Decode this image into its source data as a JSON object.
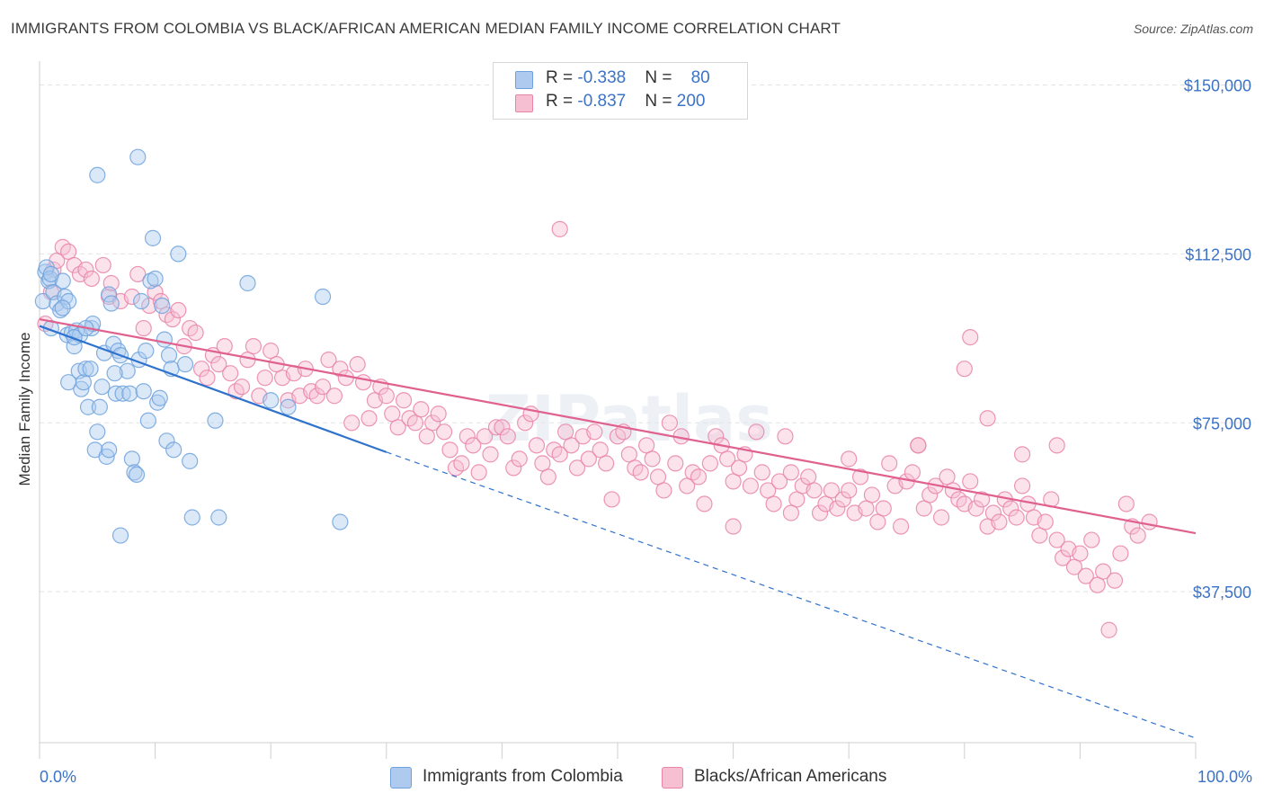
{
  "title": "IMMIGRANTS FROM COLOMBIA VS BLACK/AFRICAN AMERICAN MEDIAN FAMILY INCOME CORRELATION CHART",
  "source": "Source: ZipAtlas.com",
  "watermark": "ZIPatlas",
  "colors": {
    "blue": "#6fa2dd",
    "blue_fill": "#aecbef",
    "blue_line": "#2f72cc",
    "pink": "#e984a8",
    "pink_fill": "#f6bfd2",
    "pink_line": "#e0608e",
    "tick_text": "#3b73c7",
    "grid": "#e3e3e3"
  },
  "legend": {
    "rows": [
      {
        "r_label": "R = ",
        "r_value": "-0.338",
        "n_label": "N = ",
        "n_value": "80"
      },
      {
        "r_label": "R = ",
        "r_value": "-0.837",
        "n_label": "N = ",
        "n_value": "200"
      }
    ]
  },
  "bottom_legend": [
    "Immigrants from Colombia",
    "Blacks/African Americans"
  ],
  "chart_data": {
    "type": "scatter",
    "ylabel": "Median Family Income",
    "xlabel": "",
    "x_tick_labels": [
      "0.0%",
      "100.0%"
    ],
    "y_tick_labels": [
      "$150,000",
      "$112,500",
      "$75,000",
      "$37,500"
    ],
    "y_ticks": [
      150000,
      112500,
      75000,
      37500
    ],
    "xlim": [
      0,
      100
    ],
    "ylim": [
      4000,
      153500
    ],
    "grid": true,
    "legend_position": "top-center",
    "series": [
      {
        "name": "Immigrants from Colombia",
        "color": "blue",
        "trend": {
          "x0": 0,
          "y0": 96500,
          "x1": 30,
          "y1": 68500,
          "dashed_to_x": 100,
          "dashed_to_y": 5000
        },
        "points": [
          [
            0.3,
            102000
          ],
          [
            0.5,
            108500
          ],
          [
            0.8,
            106500
          ],
          [
            0.6,
            109500
          ],
          [
            0.9,
            107000
          ],
          [
            1.2,
            104000
          ],
          [
            1.0,
            96000
          ],
          [
            1.5,
            101500
          ],
          [
            1.8,
            100000
          ],
          [
            2.0,
            106500
          ],
          [
            2.2,
            103000
          ],
          [
            2.5,
            102000
          ],
          [
            2.4,
            94500
          ],
          [
            2.8,
            95000
          ],
          [
            3.0,
            92000
          ],
          [
            3.2,
            95500
          ],
          [
            3.5,
            94500
          ],
          [
            3.4,
            86500
          ],
          [
            3.6,
            82500
          ],
          [
            3.8,
            84000
          ],
          [
            4.0,
            87000
          ],
          [
            4.2,
            78500
          ],
          [
            4.4,
            87000
          ],
          [
            4.5,
            96000
          ],
          [
            4.6,
            97000
          ],
          [
            4.8,
            69000
          ],
          [
            5.0,
            73000
          ],
          [
            5.2,
            78500
          ],
          [
            5.4,
            83000
          ],
          [
            5.6,
            90500
          ],
          [
            5.8,
            67500
          ],
          [
            6.0,
            69000
          ],
          [
            6.0,
            103500
          ],
          [
            6.2,
            101500
          ],
          [
            6.4,
            92500
          ],
          [
            6.6,
            81500
          ],
          [
            6.8,
            91000
          ],
          [
            7.0,
            90000
          ],
          [
            7.2,
            81500
          ],
          [
            7.6,
            86500
          ],
          [
            7.0,
            50000
          ],
          [
            7.8,
            81500
          ],
          [
            8.0,
            67000
          ],
          [
            8.2,
            64000
          ],
          [
            8.4,
            63500
          ],
          [
            8.6,
            89000
          ],
          [
            8.8,
            102000
          ],
          [
            9.0,
            82000
          ],
          [
            9.2,
            91000
          ],
          [
            9.4,
            75500
          ],
          [
            9.6,
            106500
          ],
          [
            9.8,
            116000
          ],
          [
            10.0,
            107000
          ],
          [
            10.2,
            79500
          ],
          [
            10.4,
            80500
          ],
          [
            10.6,
            101000
          ],
          [
            10.8,
            93500
          ],
          [
            11.0,
            71000
          ],
          [
            11.2,
            90000
          ],
          [
            11.4,
            87000
          ],
          [
            11.6,
            69000
          ],
          [
            12.0,
            112500
          ],
          [
            12.6,
            88000
          ],
          [
            13.0,
            66500
          ],
          [
            13.2,
            54000
          ],
          [
            15.5,
            54000
          ],
          [
            15.2,
            75500
          ],
          [
            18.0,
            106000
          ],
          [
            20.0,
            80000
          ],
          [
            21.5,
            78500
          ],
          [
            24.5,
            103000
          ],
          [
            26.0,
            53000
          ],
          [
            5.0,
            130000
          ],
          [
            8.5,
            134000
          ],
          [
            1.0,
            108000
          ],
          [
            2.0,
            100500
          ],
          [
            3.0,
            94000
          ],
          [
            4.0,
            96000
          ],
          [
            2.5,
            84000
          ],
          [
            6.5,
            86000
          ]
        ]
      },
      {
        "name": "Blacks/African Americans",
        "color": "pink",
        "trend": {
          "x0": 0,
          "y0": 98000,
          "x1": 100,
          "y1": 50500
        },
        "points": [
          [
            0.5,
            97000
          ],
          [
            1.0,
            104000
          ],
          [
            1.2,
            109000
          ],
          [
            1.5,
            111000
          ],
          [
            2.0,
            114000
          ],
          [
            2.5,
            113000
          ],
          [
            3.0,
            110000
          ],
          [
            3.5,
            108000
          ],
          [
            4.0,
            109000
          ],
          [
            4.5,
            107000
          ],
          [
            5.5,
            110000
          ],
          [
            6.0,
            103000
          ],
          [
            6.2,
            106000
          ],
          [
            7.0,
            102000
          ],
          [
            8.0,
            103000
          ],
          [
            8.5,
            108000
          ],
          [
            9.0,
            96000
          ],
          [
            9.5,
            101000
          ],
          [
            10.0,
            104000
          ],
          [
            10.5,
            102000
          ],
          [
            11.0,
            99000
          ],
          [
            11.5,
            98000
          ],
          [
            12.0,
            100000
          ],
          [
            12.5,
            92000
          ],
          [
            13.0,
            96000
          ],
          [
            13.5,
            95000
          ],
          [
            14.0,
            87000
          ],
          [
            14.5,
            85000
          ],
          [
            15.0,
            90000
          ],
          [
            15.5,
            88000
          ],
          [
            16.0,
            92000
          ],
          [
            16.5,
            86000
          ],
          [
            17.0,
            82000
          ],
          [
            17.5,
            83000
          ],
          [
            18.0,
            89000
          ],
          [
            18.5,
            92000
          ],
          [
            19.0,
            81000
          ],
          [
            19.5,
            85000
          ],
          [
            20.0,
            91000
          ],
          [
            20.5,
            88000
          ],
          [
            21.0,
            85000
          ],
          [
            21.5,
            80000
          ],
          [
            22.0,
            86000
          ],
          [
            22.5,
            81000
          ],
          [
            23.0,
            87000
          ],
          [
            23.5,
            82000
          ],
          [
            24.0,
            81000
          ],
          [
            24.5,
            83000
          ],
          [
            25.0,
            89000
          ],
          [
            25.5,
            81000
          ],
          [
            26.0,
            87000
          ],
          [
            26.5,
            85000
          ],
          [
            27.0,
            75000
          ],
          [
            27.5,
            88000
          ],
          [
            28.0,
            84000
          ],
          [
            28.5,
            76000
          ],
          [
            29.0,
            80000
          ],
          [
            29.5,
            83000
          ],
          [
            30.0,
            81000
          ],
          [
            30.5,
            77000
          ],
          [
            31.0,
            74000
          ],
          [
            31.5,
            80000
          ],
          [
            32.0,
            76000
          ],
          [
            32.5,
            75000
          ],
          [
            33.0,
            78000
          ],
          [
            33.5,
            72000
          ],
          [
            34.0,
            75000
          ],
          [
            34.5,
            77000
          ],
          [
            35.0,
            73000
          ],
          [
            35.5,
            69000
          ],
          [
            36.0,
            65000
          ],
          [
            36.5,
            66000
          ],
          [
            37.0,
            72000
          ],
          [
            37.5,
            70000
          ],
          [
            38.0,
            64000
          ],
          [
            38.5,
            72000
          ],
          [
            39.0,
            68000
          ],
          [
            39.5,
            74000
          ],
          [
            40.0,
            74000
          ],
          [
            40.5,
            72000
          ],
          [
            41.0,
            65000
          ],
          [
            41.5,
            67000
          ],
          [
            42.0,
            75000
          ],
          [
            42.5,
            77000
          ],
          [
            43.0,
            70000
          ],
          [
            43.5,
            66000
          ],
          [
            44.0,
            63000
          ],
          [
            44.5,
            69000
          ],
          [
            45.0,
            68000
          ],
          [
            45.5,
            73000
          ],
          [
            46.0,
            70000
          ],
          [
            46.5,
            65000
          ],
          [
            47.0,
            72000
          ],
          [
            47.5,
            67000
          ],
          [
            48.0,
            73000
          ],
          [
            48.5,
            69000
          ],
          [
            49.0,
            66000
          ],
          [
            49.5,
            58000
          ],
          [
            50.0,
            72000
          ],
          [
            50.5,
            73000
          ],
          [
            51.0,
            68000
          ],
          [
            51.5,
            65000
          ],
          [
            52.0,
            64000
          ],
          [
            52.5,
            70000
          ],
          [
            53.0,
            67000
          ],
          [
            53.5,
            63000
          ],
          [
            54.0,
            60000
          ],
          [
            54.5,
            75000
          ],
          [
            55.0,
            66000
          ],
          [
            55.5,
            72000
          ],
          [
            56.0,
            61000
          ],
          [
            56.5,
            64000
          ],
          [
            57.0,
            63000
          ],
          [
            57.5,
            57000
          ],
          [
            58.0,
            66000
          ],
          [
            58.5,
            72000
          ],
          [
            59.0,
            70000
          ],
          [
            59.5,
            67000
          ],
          [
            60.0,
            62000
          ],
          [
            60.5,
            65000
          ],
          [
            61.0,
            68000
          ],
          [
            61.5,
            61000
          ],
          [
            62.0,
            73000
          ],
          [
            62.5,
            64000
          ],
          [
            63.0,
            60000
          ],
          [
            63.5,
            57000
          ],
          [
            64.0,
            62000
          ],
          [
            64.5,
            72000
          ],
          [
            65.0,
            64000
          ],
          [
            65.5,
            58000
          ],
          [
            66.0,
            61000
          ],
          [
            66.5,
            63000
          ],
          [
            67.0,
            60000
          ],
          [
            67.5,
            55000
          ],
          [
            68.0,
            57000
          ],
          [
            68.5,
            60000
          ],
          [
            69.0,
            56000
          ],
          [
            69.5,
            58000
          ],
          [
            70.0,
            60000
          ],
          [
            70.5,
            55000
          ],
          [
            71.0,
            63000
          ],
          [
            71.5,
            56000
          ],
          [
            72.0,
            59000
          ],
          [
            72.5,
            53000
          ],
          [
            73.0,
            56000
          ],
          [
            73.5,
            66000
          ],
          [
            74.0,
            61000
          ],
          [
            74.5,
            52000
          ],
          [
            75.0,
            62000
          ],
          [
            75.5,
            64000
          ],
          [
            76.0,
            70000
          ],
          [
            76.5,
            56000
          ],
          [
            77.0,
            59000
          ],
          [
            77.5,
            61000
          ],
          [
            78.0,
            54000
          ],
          [
            78.5,
            63000
          ],
          [
            79.0,
            60000
          ],
          [
            79.5,
            58000
          ],
          [
            80.0,
            57000
          ],
          [
            80.5,
            62000
          ],
          [
            81.0,
            56000
          ],
          [
            81.5,
            58000
          ],
          [
            82.0,
            52000
          ],
          [
            82.5,
            55000
          ],
          [
            83.0,
            53000
          ],
          [
            83.5,
            58000
          ],
          [
            84.0,
            56000
          ],
          [
            84.5,
            54000
          ],
          [
            85.0,
            61000
          ],
          [
            85.5,
            57000
          ],
          [
            86.0,
            54000
          ],
          [
            86.5,
            50000
          ],
          [
            87.0,
            53000
          ],
          [
            87.5,
            58000
          ],
          [
            88.0,
            49000
          ],
          [
            88.5,
            45000
          ],
          [
            89.0,
            47000
          ],
          [
            89.5,
            43000
          ],
          [
            90.0,
            46000
          ],
          [
            90.5,
            41000
          ],
          [
            91.0,
            49000
          ],
          [
            91.5,
            39000
          ],
          [
            92.0,
            42000
          ],
          [
            92.5,
            29000
          ],
          [
            93.0,
            40000
          ],
          [
            93.5,
            46000
          ],
          [
            94.0,
            57000
          ],
          [
            94.5,
            52000
          ],
          [
            95.0,
            50000
          ],
          [
            96.0,
            53000
          ],
          [
            60.0,
            52000
          ],
          [
            65.0,
            55000
          ],
          [
            70.0,
            67000
          ],
          [
            76.0,
            70000
          ],
          [
            80.0,
            87000
          ],
          [
            82.0,
            76000
          ],
          [
            85.0,
            68000
          ],
          [
            88.0,
            70000
          ],
          [
            45.0,
            118000
          ],
          [
            80.5,
            94000
          ]
        ]
      }
    ]
  }
}
